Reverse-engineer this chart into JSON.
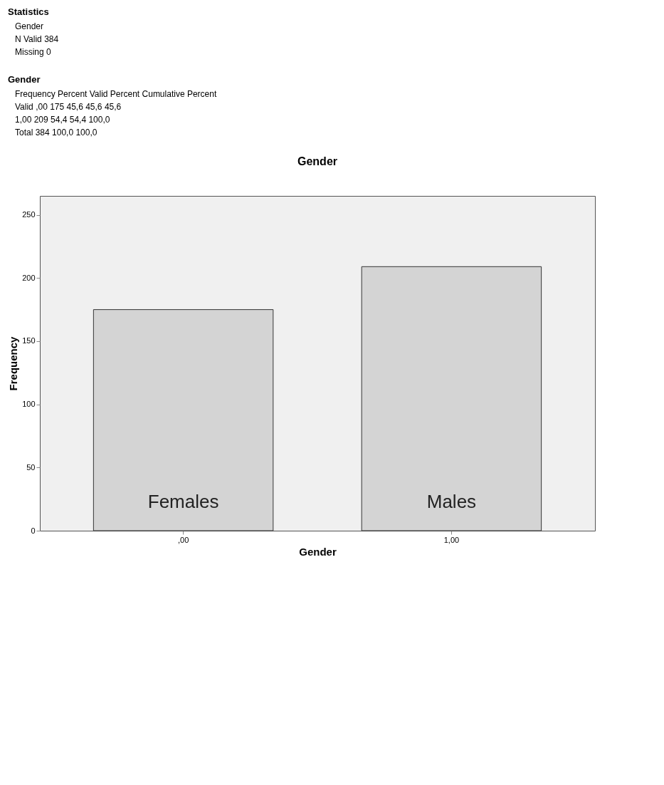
{
  "chart_data": [
    {
      "type": "other",
      "title": "Statistics",
      "annotations": [
        "Gender",
        "N Valid 384",
        "Missing 0"
      ]
    },
    {
      "type": "other",
      "title": "Gender",
      "annotations": [
        "Frequency Percent Valid Percent Cumulative Percent",
        "Valid ,00 175 45,6 45,6 45,6",
        "1,00 209 54,4 54,4 100,0",
        "Total 384 100,0 100,0"
      ]
    },
    {
      "type": "bar",
      "title": "Gender",
      "categories": [
        ",00",
        "1,00"
      ],
      "values": [
        175,
        209
      ],
      "color": "#d4d4d4",
      "xlabel": "Gender",
      "ylabel": "Frequency",
      "ylim": [
        0,
        265
      ],
      "yticks": [
        0,
        50,
        100,
        150,
        200,
        250
      ],
      "annotations": [
        "Females",
        "Males"
      ]
    }
  ]
}
